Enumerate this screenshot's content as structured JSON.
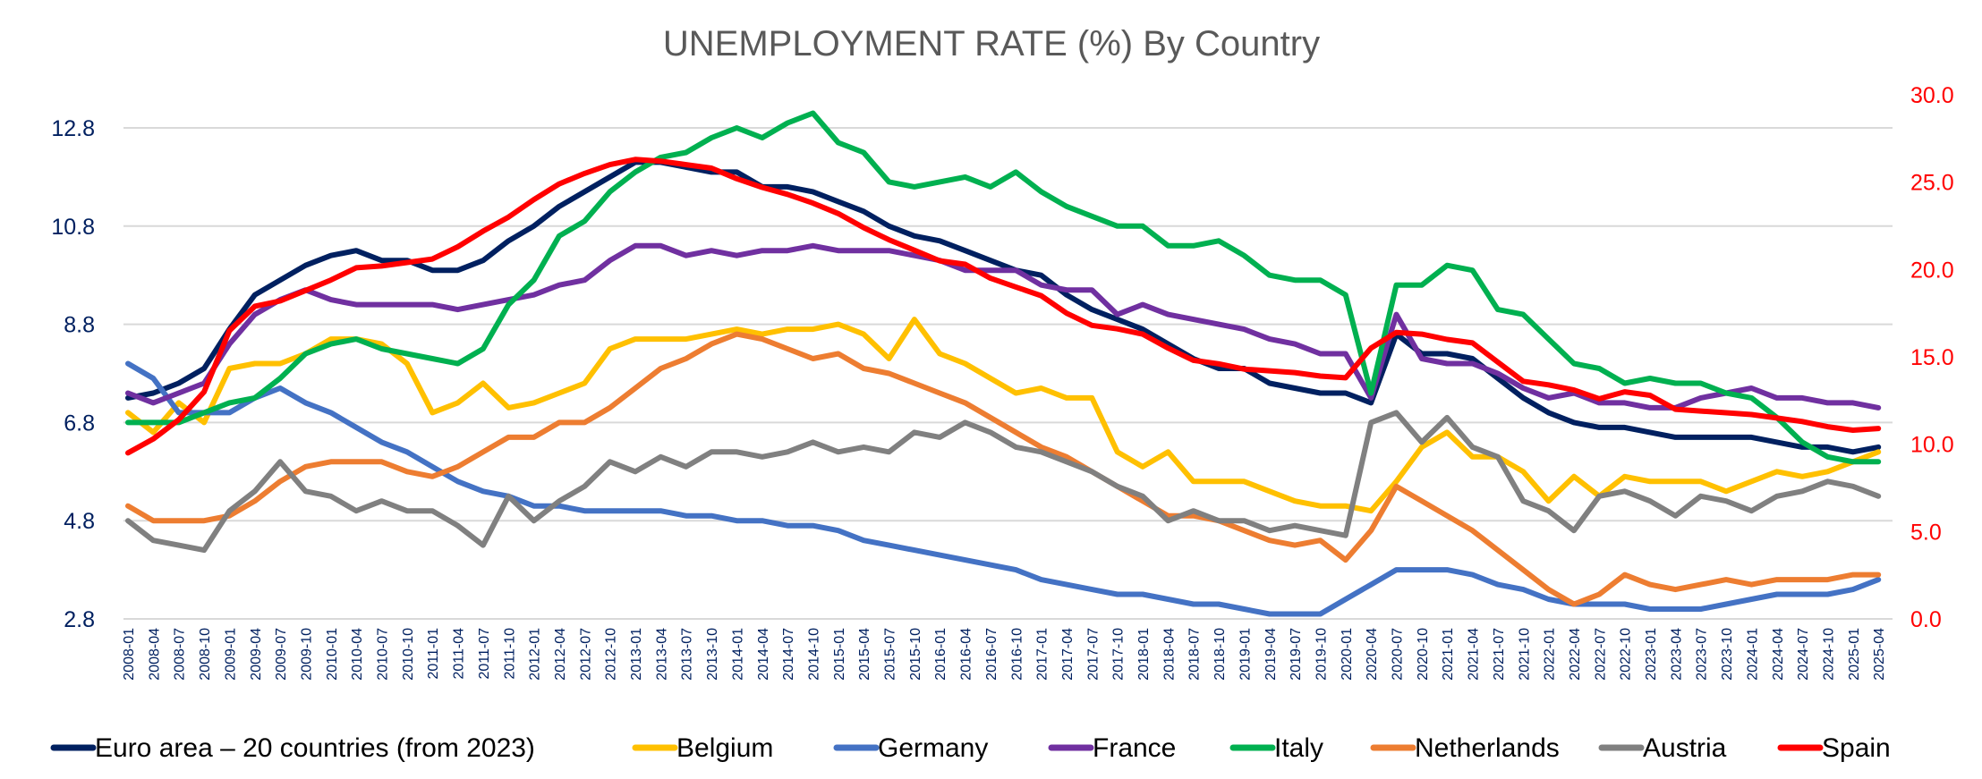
{
  "chart_data": {
    "type": "line",
    "title": "UNEMPLOYMENT RATE (%) By Country",
    "xlabel": "",
    "ylabel": "",
    "y_left": {
      "ticks": [
        "2.8",
        "4.8",
        "6.8",
        "8.8",
        "10.8",
        "12.8"
      ],
      "range": [
        2.8,
        12.8
      ]
    },
    "y_right": {
      "ticks": [
        "0.0",
        "5.0",
        "10.0",
        "15.0",
        "20.0",
        "25.0",
        "30.0"
      ],
      "range": [
        0,
        30
      ],
      "color": "#ff0000",
      "series": [
        "Spain"
      ]
    },
    "grid": true,
    "legend_position": "bottom",
    "x": [
      "2008-01",
      "2008-04",
      "2008-07",
      "2008-10",
      "2009-01",
      "2009-04",
      "2009-07",
      "2009-10",
      "2010-01",
      "2010-04",
      "2010-07",
      "2010-10",
      "2011-01",
      "2011-04",
      "2011-07",
      "2011-10",
      "2012-01",
      "2012-04",
      "2012-07",
      "2012-10",
      "2013-01",
      "2013-04",
      "2013-07",
      "2013-10",
      "2014-01",
      "2014-04",
      "2014-07",
      "2014-10",
      "2015-01",
      "2015-04",
      "2015-07",
      "2015-10",
      "2016-01",
      "2016-04",
      "2016-07",
      "2016-10",
      "2017-01",
      "2017-04",
      "2017-07",
      "2017-10",
      "2018-01",
      "2018-04",
      "2018-07",
      "2018-10",
      "2019-01",
      "2019-04",
      "2019-07",
      "2019-10",
      "2020-01",
      "2020-04",
      "2020-07",
      "2020-10",
      "2021-01",
      "2021-04",
      "2021-07",
      "2021-10",
      "2022-01",
      "2022-04",
      "2022-07",
      "2022-10",
      "2023-01",
      "2023-04",
      "2023-07",
      "2023-10",
      "2024-01",
      "2024-04",
      "2024-07",
      "2024-10",
      "2025-01",
      "2025-04"
    ],
    "series": [
      {
        "name": "Euro area – 20 countries (from 2023)",
        "color": "#002060",
        "axis": "left",
        "values": [
          7.3,
          7.4,
          7.6,
          7.9,
          8.7,
          9.4,
          9.7,
          10.0,
          10.2,
          10.3,
          10.1,
          10.1,
          9.9,
          9.9,
          10.1,
          10.5,
          10.8,
          11.2,
          11.5,
          11.8,
          12.1,
          12.1,
          12.0,
          11.9,
          11.9,
          11.6,
          11.6,
          11.5,
          11.3,
          11.1,
          10.8,
          10.6,
          10.5,
          10.3,
          10.1,
          9.9,
          9.8,
          9.4,
          9.1,
          8.9,
          8.7,
          8.4,
          8.1,
          7.9,
          7.9,
          7.6,
          7.5,
          7.4,
          7.4,
          7.2,
          8.6,
          8.2,
          8.2,
          8.1,
          7.7,
          7.3,
          7.0,
          6.8,
          6.7,
          6.7,
          6.6,
          6.5,
          6.5,
          6.5,
          6.5,
          6.4,
          6.3,
          6.3,
          6.2,
          6.3
        ]
      },
      {
        "name": "Belgium",
        "color": "#ffc000",
        "axis": "left",
        "values": [
          7.0,
          6.6,
          7.2,
          6.8,
          7.9,
          8.0,
          8.0,
          8.2,
          8.5,
          8.5,
          8.4,
          8.0,
          7.0,
          7.2,
          7.6,
          7.1,
          7.2,
          7.4,
          7.6,
          8.3,
          8.5,
          8.5,
          8.5,
          8.6,
          8.7,
          8.6,
          8.7,
          8.7,
          8.8,
          8.6,
          8.1,
          8.9,
          8.2,
          8.0,
          7.7,
          7.4,
          7.5,
          7.3,
          7.3,
          6.2,
          5.9,
          6.2,
          5.6,
          5.6,
          5.6,
          5.4,
          5.2,
          5.1,
          5.1,
          5.0,
          5.6,
          6.3,
          6.6,
          6.1,
          6.1,
          5.8,
          5.2,
          5.7,
          5.3,
          5.7,
          5.6,
          5.6,
          5.6,
          5.4,
          5.6,
          5.8,
          5.7,
          5.8,
          6.0,
          6.2
        ]
      },
      {
        "name": "Germany",
        "color": "#4472c4",
        "axis": "left",
        "values": [
          8.0,
          7.7,
          7.0,
          7.0,
          7.0,
          7.3,
          7.5,
          7.2,
          7.0,
          6.7,
          6.4,
          6.2,
          5.9,
          5.6,
          5.4,
          5.3,
          5.1,
          5.1,
          5.0,
          5.0,
          5.0,
          5.0,
          4.9,
          4.9,
          4.8,
          4.8,
          4.7,
          4.7,
          4.6,
          4.4,
          4.3,
          4.2,
          4.1,
          4.0,
          3.9,
          3.8,
          3.6,
          3.5,
          3.4,
          3.3,
          3.3,
          3.2,
          3.1,
          3.1,
          3.0,
          2.9,
          2.9,
          2.9,
          3.2,
          3.5,
          3.8,
          3.8,
          3.8,
          3.7,
          3.5,
          3.4,
          3.2,
          3.1,
          3.1,
          3.1,
          3.0,
          3.0,
          3.0,
          3.1,
          3.2,
          3.3,
          3.3,
          3.3,
          3.4,
          3.6
        ]
      },
      {
        "name": "France",
        "color": "#7030a0",
        "axis": "left",
        "values": [
          7.4,
          7.2,
          7.4,
          7.6,
          8.4,
          9.0,
          9.3,
          9.5,
          9.3,
          9.2,
          9.2,
          9.2,
          9.2,
          9.1,
          9.2,
          9.3,
          9.4,
          9.6,
          9.7,
          10.1,
          10.4,
          10.4,
          10.2,
          10.3,
          10.2,
          10.3,
          10.3,
          10.4,
          10.3,
          10.3,
          10.3,
          10.2,
          10.1,
          9.9,
          9.9,
          9.9,
          9.6,
          9.5,
          9.5,
          9.0,
          9.2,
          9.0,
          8.9,
          8.8,
          8.7,
          8.5,
          8.4,
          8.2,
          8.2,
          7.3,
          9.0,
          8.1,
          8.0,
          8.0,
          7.8,
          7.5,
          7.3,
          7.4,
          7.2,
          7.2,
          7.1,
          7.1,
          7.3,
          7.4,
          7.5,
          7.3,
          7.3,
          7.2,
          7.2,
          7.1
        ]
      },
      {
        "name": "Italy",
        "color": "#00b050",
        "axis": "left",
        "values": [
          6.8,
          6.8,
          6.8,
          7.0,
          7.2,
          7.3,
          7.7,
          8.2,
          8.4,
          8.5,
          8.3,
          8.2,
          8.1,
          8.0,
          8.3,
          9.2,
          9.7,
          10.6,
          10.9,
          11.5,
          11.9,
          12.2,
          12.3,
          12.6,
          12.8,
          12.6,
          12.9,
          13.1,
          12.5,
          12.3,
          11.7,
          11.6,
          11.7,
          11.8,
          11.6,
          11.9,
          11.5,
          11.2,
          11.0,
          10.8,
          10.8,
          10.4,
          10.4,
          10.5,
          10.2,
          9.8,
          9.7,
          9.7,
          9.4,
          7.4,
          9.6,
          9.6,
          10.0,
          9.9,
          9.1,
          9.0,
          8.5,
          8.0,
          7.9,
          7.6,
          7.7,
          7.6,
          7.6,
          7.4,
          7.3,
          6.9,
          6.4,
          6.1,
          6.0,
          6.0
        ]
      },
      {
        "name": "Netherlands",
        "color": "#ed7d31",
        "axis": "left",
        "values": [
          5.1,
          4.8,
          4.8,
          4.8,
          4.9,
          5.2,
          5.6,
          5.9,
          6.0,
          6.0,
          6.0,
          5.8,
          5.7,
          5.9,
          6.2,
          6.5,
          6.5,
          6.8,
          6.8,
          7.1,
          7.5,
          7.9,
          8.1,
          8.4,
          8.6,
          8.5,
          8.3,
          8.1,
          8.2,
          7.9,
          7.8,
          7.6,
          7.4,
          7.2,
          6.9,
          6.6,
          6.3,
          6.1,
          5.8,
          5.5,
          5.2,
          4.9,
          4.9,
          4.8,
          4.6,
          4.4,
          4.3,
          4.4,
          4.0,
          4.6,
          5.5,
          5.2,
          4.9,
          4.6,
          4.2,
          3.8,
          3.4,
          3.1,
          3.3,
          3.7,
          3.5,
          3.4,
          3.5,
          3.6,
          3.5,
          3.6,
          3.6,
          3.6,
          3.7,
          3.7
        ]
      },
      {
        "name": "Austria",
        "color": "#808080",
        "axis": "left",
        "values": [
          4.8,
          4.4,
          4.3,
          4.2,
          5.0,
          5.4,
          6.0,
          5.4,
          5.3,
          5.0,
          5.2,
          5.0,
          5.0,
          4.7,
          4.3,
          5.3,
          4.8,
          5.2,
          5.5,
          6.0,
          5.8,
          6.1,
          5.9,
          6.2,
          6.2,
          6.1,
          6.2,
          6.4,
          6.2,
          6.3,
          6.2,
          6.6,
          6.5,
          6.8,
          6.6,
          6.3,
          6.2,
          6.0,
          5.8,
          5.5,
          5.3,
          4.8,
          5.0,
          4.8,
          4.8,
          4.6,
          4.7,
          4.6,
          4.5,
          6.8,
          7.0,
          6.4,
          6.9,
          6.3,
          6.1,
          5.2,
          5.0,
          4.6,
          5.3,
          5.4,
          5.2,
          4.9,
          5.3,
          5.2,
          5.0,
          5.3,
          5.4,
          5.6,
          5.5,
          5.3
        ]
      },
      {
        "name": "Spain",
        "color": "#ff0000",
        "axis": "right",
        "values": [
          9.5,
          10.3,
          11.4,
          13.0,
          16.5,
          17.9,
          18.2,
          18.8,
          19.4,
          20.1,
          20.2,
          20.4,
          20.6,
          21.3,
          22.2,
          23.0,
          24.0,
          24.9,
          25.5,
          26.0,
          26.3,
          26.2,
          26.0,
          25.8,
          25.2,
          24.7,
          24.3,
          23.8,
          23.2,
          22.4,
          21.7,
          21.1,
          20.5,
          20.3,
          19.5,
          19.0,
          18.5,
          17.5,
          16.8,
          16.6,
          16.3,
          15.5,
          14.8,
          14.6,
          14.3,
          14.2,
          14.1,
          13.9,
          13.8,
          15.5,
          16.4,
          16.3,
          16.0,
          15.8,
          14.7,
          13.6,
          13.4,
          13.1,
          12.6,
          13.0,
          12.8,
          12.0,
          11.9,
          11.8,
          11.7,
          11.5,
          11.3,
          11.0,
          10.8,
          10.9
        ]
      }
    ]
  }
}
